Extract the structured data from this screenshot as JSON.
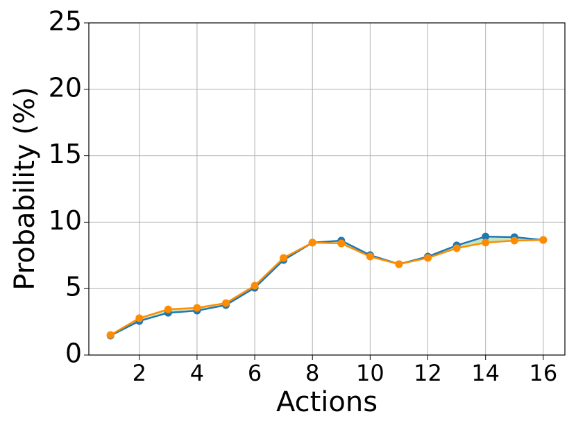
{
  "chart_data": {
    "type": "line",
    "x_label": "Actions",
    "y_label": "Probability (%)",
    "x": [
      1,
      2,
      3,
      4,
      5,
      6,
      7,
      8,
      9,
      10,
      11,
      12,
      13,
      14,
      15,
      16
    ],
    "series": [
      {
        "color": "#1f77b4",
        "values": [
          1.46,
          2.56,
          3.18,
          3.34,
          3.76,
          5.06,
          7.15,
          8.46,
          8.61,
          7.52,
          6.84,
          7.41,
          8.25,
          8.92,
          8.87,
          8.66
        ]
      },
      {
        "color": "#ff8c00",
        "values": [
          1.51,
          2.77,
          3.44,
          3.55,
          3.91,
          5.22,
          7.31,
          8.46,
          8.4,
          7.41,
          6.84,
          7.31,
          8.04,
          8.46,
          8.61,
          8.66
        ]
      }
    ],
    "fill_between": true,
    "fill_color": "#8fd18f",
    "xlim": [
      0.25,
      16.75
    ],
    "xticks": [
      2,
      4,
      6,
      8,
      10,
      12,
      14,
      16
    ],
    "ylim": [
      0,
      25
    ],
    "yticks": [
      0,
      5,
      10,
      15,
      20,
      25
    ],
    "grid": true
  }
}
